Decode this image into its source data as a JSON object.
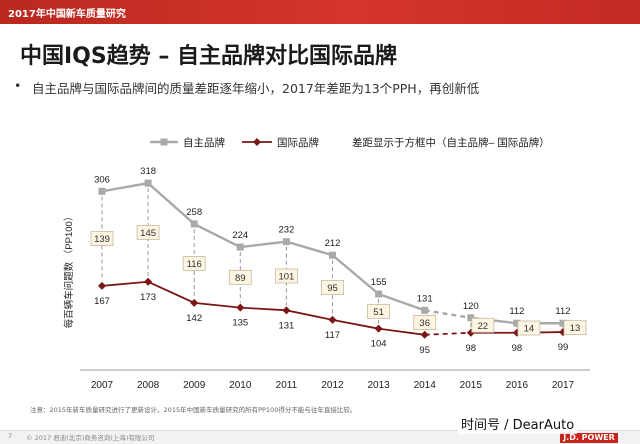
{
  "header": {
    "text": "2017年中国新车质量研究"
  },
  "slide": {
    "title": "中国IQS趋势 – 自主品牌对比国际品牌",
    "bullet": "自主品牌与国际品牌间的质量差距逐年缩小，2017年差距为13个PPH，再创新低"
  },
  "chart_data": {
    "type": "line",
    "x": [
      "2007",
      "2008",
      "2009",
      "2010",
      "2011",
      "2012",
      "2013",
      "2014",
      "2015",
      "2016",
      "2017"
    ],
    "series": [
      {
        "name": "自主品牌",
        "color": "#a9a9a9",
        "values": [
          306,
          318,
          258,
          224,
          232,
          212,
          155,
          131,
          120,
          112,
          112
        ]
      },
      {
        "name": "国际品牌",
        "color": "#7a1616",
        "values": [
          167,
          173,
          142,
          135,
          131,
          117,
          104,
          95,
          98,
          98,
          99
        ]
      }
    ],
    "gap": [
      139,
      145,
      116,
      89,
      101,
      95,
      51,
      36,
      22,
      14,
      13
    ],
    "gap_note": "差距显示于方框中（自主品牌– 国际品牌）",
    "ylabel": "每百辆车问题数 （PP100）",
    "ylim": [
      80,
      330
    ],
    "legend_position": "top"
  },
  "footer": {
    "note": "注意：2015年新车质量研究进行了更新设计。2015年中国新车质量研究的所有PP100得分不能与往年直接比较。",
    "page": "7",
    "copyright": "© 2017 君迪(北京)商务咨询(上海)有限公司",
    "watermark": "时间号 / DearAuto",
    "logo": "J.D. POWER"
  }
}
